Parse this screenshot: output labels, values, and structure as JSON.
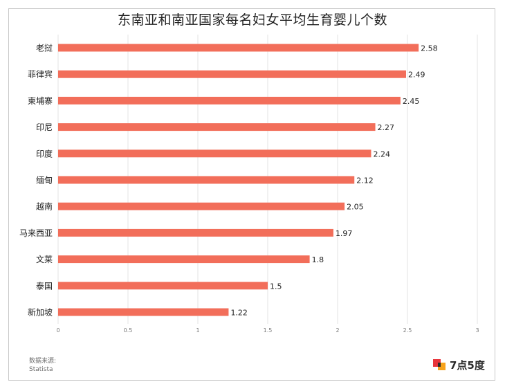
{
  "chart_data": {
    "type": "bar",
    "orientation": "horizontal",
    "title": "东南亚和南亚国家每名妇女平均生育婴儿个数",
    "categories": [
      "老挝",
      "菲律宾",
      "柬埔寨",
      "印尼",
      "印度",
      "缅甸",
      "越南",
      "马来西亚",
      "文莱",
      "泰国",
      "新加坡"
    ],
    "values": [
      2.58,
      2.49,
      2.45,
      2.27,
      2.24,
      2.12,
      2.05,
      1.97,
      1.8,
      1.5,
      1.22
    ],
    "data_labels": [
      "2.58",
      "2.49",
      "2.45",
      "2.27",
      "2.24",
      "2.12",
      "2.05",
      "1.97",
      "1.8",
      "1.5",
      "1.22"
    ],
    "xlim": [
      0,
      3
    ],
    "x_ticks": [
      0,
      0.5,
      1,
      1.5,
      2,
      2.5,
      3
    ],
    "x_tick_labels": [
      "0",
      "0.5",
      "1",
      "1.5",
      "2",
      "2.5",
      "3"
    ],
    "xlabel": "",
    "ylabel": "",
    "grid": true,
    "legend": "none",
    "bar_color": "#f26e5a"
  },
  "footer": {
    "source_label": "数据来源:",
    "source_name": "Statista"
  },
  "brand": {
    "name": "7点5度",
    "colors": [
      "#e8343a",
      "#f7a21b",
      "#2b2b2b"
    ]
  }
}
